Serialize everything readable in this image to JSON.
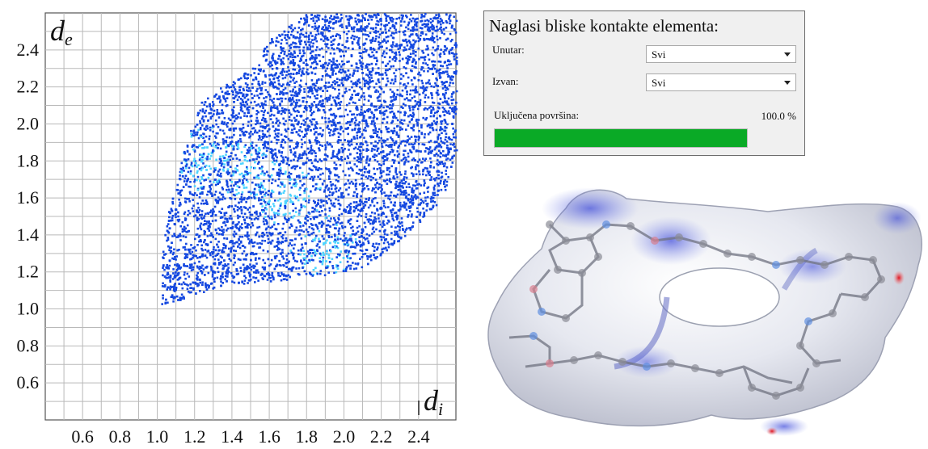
{
  "chart_data": {
    "type": "heatmap",
    "xlabel": "d",
    "xlabel_sub": "i",
    "ylabel": "d",
    "ylabel_sub": "e",
    "xlim": [
      0.4,
      2.6
    ],
    "ylim": [
      0.4,
      2.6
    ],
    "x_ticks": [
      "0.6",
      "0.8",
      "1.0",
      "1.2",
      "1.4",
      "1.6",
      "1.8",
      "2.0",
      "2.2",
      "2.4"
    ],
    "y_ticks": [
      "2.4",
      "2.2",
      "2.0",
      "1.8",
      "1.6",
      "1.4",
      "1.2",
      "1.0",
      "0.8",
      "0.6"
    ],
    "grid": true,
    "point_color": "#1448e0",
    "hot_color": "#4fd4ff",
    "region_outline": [
      [
        1.02,
        1.02
      ],
      [
        1.35,
        1.13
      ],
      [
        1.66,
        1.16
      ],
      [
        1.92,
        1.19
      ],
      [
        2.1,
        1.23
      ],
      [
        2.28,
        1.36
      ],
      [
        2.52,
        1.58
      ],
      [
        2.6,
        1.85
      ],
      [
        2.6,
        2.6
      ],
      [
        1.8,
        2.6
      ],
      [
        1.6,
        2.46
      ],
      [
        1.5,
        2.3
      ],
      [
        1.24,
        2.14
      ],
      [
        1.15,
        1.9
      ],
      [
        1.11,
        1.74
      ],
      [
        1.05,
        1.5
      ],
      [
        1.02,
        1.26
      ]
    ],
    "dense_regions": [
      {
        "di": 1.26,
        "de": 1.82
      },
      {
        "di": 1.5,
        "de": 1.76
      },
      {
        "di": 1.9,
        "de": 1.32
      },
      {
        "di": 1.7,
        "de": 1.6
      }
    ]
  },
  "panel": {
    "title": "Naglasi bliske kontakte elementa:",
    "inside_label": "Unutar:",
    "inside_value": "Svi",
    "outside_label": "Izvan:",
    "outside_value": "Svi",
    "surface_label": "Uključena površina:",
    "surface_value": "100.0 %",
    "surface_fraction": 1.0,
    "progress_color": "#0aaa26"
  },
  "surface_view": {
    "surface_color": "#d9dbe6",
    "contact_color": "#3444d8",
    "hotspot_color": "#e01020"
  }
}
